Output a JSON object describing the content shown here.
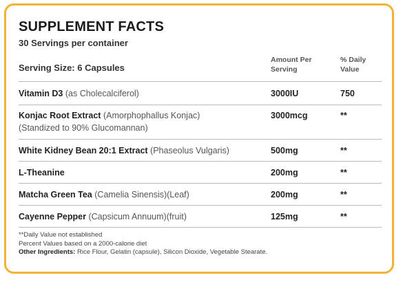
{
  "title": "SUPPLEMENT FACTS",
  "servings": "30 Servings per container",
  "serving_size": "Serving Size: 6 Capsules",
  "columns": {
    "amount_line1": "Amount Per",
    "amount_line2": "Serving",
    "dv_line1": "% Daily",
    "dv_line2": "Value"
  },
  "rows": [
    {
      "name": "Vitamin D3",
      "detail": "(as Cholecalciferol)",
      "detail2": "",
      "amount": "3000IU",
      "dv": "750"
    },
    {
      "name": "Konjac Root Extract",
      "detail": "(Amorphophallus Konjac)",
      "detail2": "(Standized to 90% Glucomannan)",
      "amount": "3000mcg",
      "dv": "**"
    },
    {
      "name": "White Kidney Bean 20:1 Extract",
      "detail": "(Phaseolus Vulgaris)",
      "detail2": "",
      "amount": "500mg",
      "dv": "**"
    },
    {
      "name": "L-Theanine",
      "detail": "",
      "detail2": "",
      "amount": "200mg",
      "dv": "**"
    },
    {
      "name": "Matcha Green Tea",
      "detail": "(Camelia Sinensis)(Leaf)",
      "detail2": "",
      "amount": "200mg",
      "dv": "**"
    },
    {
      "name": "Cayenne Pepper",
      "detail": "(Capsicum Annuum)(fruit)",
      "detail2": "",
      "amount": "125mg",
      "dv": "**"
    }
  ],
  "footer": {
    "note1": "**Daily Value not established",
    "note2": "Percent Values based on a 2000-calorie diet",
    "other_label": "Other Ingredients:",
    "other_text": "Rice Flour, Gelatin (capsule), Silicon Dioxide, Vegetable Stearate."
  },
  "colors": {
    "border": "#f2b233"
  }
}
